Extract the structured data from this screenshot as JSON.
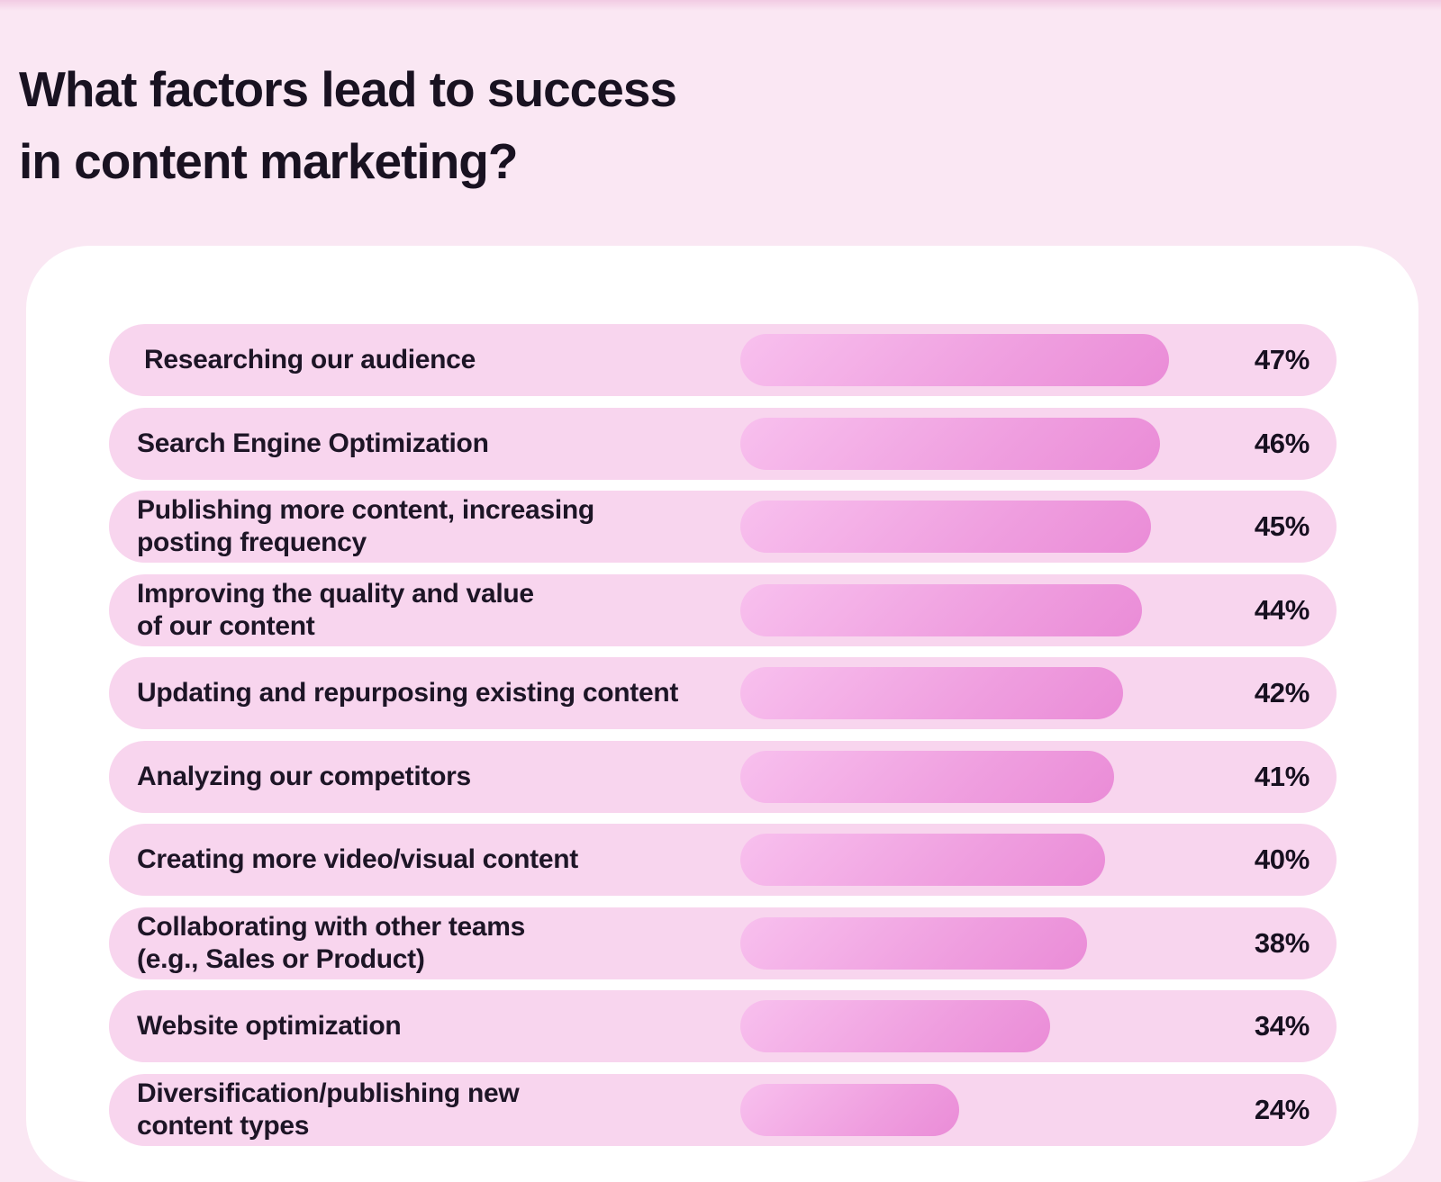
{
  "title": {
    "line1": "What factors lead to success",
    "line2": "in content marketing?"
  },
  "chart_data": {
    "type": "bar",
    "orientation": "horizontal",
    "title": "What factors lead to success in content marketing?",
    "value_unit": "percent",
    "xlim": [
      0,
      50
    ],
    "legend": "none",
    "grid": false,
    "categories": [
      "Researching our audience",
      "Search Engine Optimization",
      "Publishing more content, increasing posting frequency",
      "Improving the quality and value of our content",
      "Updating and repurposing existing content",
      "Analyzing our competitors",
      "Creating more video/visual content",
      "Collaborating with other teams (e.g., Sales or Product)",
      "Website optimization",
      "Diversification/publishing new content types"
    ],
    "values": [
      47,
      46,
      45,
      44,
      42,
      41,
      40,
      38,
      34,
      24
    ],
    "rows": [
      {
        "label": " Researching our audience",
        "value": 47,
        "value_label": "47%"
      },
      {
        "label": "Search Engine Optimization",
        "value": 46,
        "value_label": "46%"
      },
      {
        "label": "Publishing more content, increasing\nposting frequency",
        "value": 45,
        "value_label": "45%"
      },
      {
        "label": "Improving the quality and value\nof our content",
        "value": 44,
        "value_label": "44%"
      },
      {
        "label": "Updating and repurposing existing content",
        "value": 42,
        "value_label": "42%"
      },
      {
        "label": "Analyzing our competitors",
        "value": 41,
        "value_label": "41%"
      },
      {
        "label": "Creating more video/visual content",
        "value": 40,
        "value_label": "40%"
      },
      {
        "label": "Collaborating with other teams\n(e.g., Sales or Product)",
        "value": 38,
        "value_label": "38%"
      },
      {
        "label": "Website optimization",
        "value": 34,
        "value_label": "34%"
      },
      {
        "label": "Diversification/publishing new\ncontent types",
        "value": 24,
        "value_label": "24%"
      }
    ],
    "colors": {
      "page_background": "#fae7f3",
      "card_background": "#ffffff",
      "row_pill": "#f8d5ee",
      "bar_gradient_start": "#f8c0ee",
      "bar_gradient_end": "#ea8cd7",
      "text": "#1d1526"
    }
  }
}
